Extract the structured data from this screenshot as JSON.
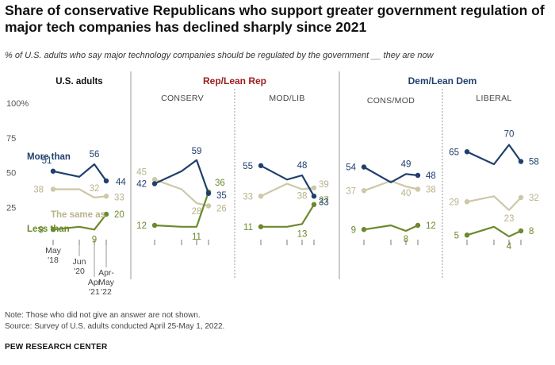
{
  "title": "Share of conservative Republicans who support greater government regulation of major tech companies has declined sharply since 2021",
  "subtitle": "% of U.S. adults who say major technology companies should be regulated by the government __ they are now",
  "notes": [
    "Note: Those who did not give an answer are not shown.",
    "Source: Survey of U.S. adults conducted April 25-May 1, 2022."
  ],
  "source_org": "PEW RESEARCH CENTER",
  "colors": {
    "more": "#1f3f6e",
    "same": "#cdc8a6",
    "less": "#6b8a2c",
    "rep": "#9b1b1b",
    "dem": "#1f3f6e"
  },
  "chart_data": {
    "type": "line",
    "x": [
      "May '18",
      "Jun '20",
      "Apr '21",
      "Apr-May '22"
    ],
    "x_tick_labels": [
      [
        "May",
        "'18"
      ],
      [
        "Jun",
        "'20"
      ],
      [
        "Apr",
        "'21"
      ],
      [
        "Apr-",
        "May",
        "'22"
      ]
    ],
    "y_ticks": [
      "100%",
      "75",
      "50",
      "25"
    ],
    "ylim": [
      0,
      100
    ],
    "series_labels": {
      "more": "More than",
      "same": "The same as",
      "less": "Less than"
    },
    "groups": [
      {
        "label": "Rep/Lean Rep"
      },
      {
        "label": "Dem/Lean Dem"
      }
    ],
    "panels": [
      {
        "label": "U.S. adults",
        "more": [
          51,
          47,
          56,
          44
        ],
        "same": [
          38,
          38,
          32,
          33
        ],
        "less": [
          9,
          11,
          9,
          20
        ]
      },
      {
        "label": "CONSERV",
        "more": [
          42,
          51,
          59,
          35
        ],
        "same": [
          45,
          38,
          28,
          26
        ],
        "less": [
          12,
          11,
          11,
          36
        ]
      },
      {
        "label": "MOD/LIB",
        "more": [
          55,
          45,
          48,
          33
        ],
        "same": [
          33,
          42,
          38,
          39
        ],
        "less": [
          11,
          11,
          13,
          27
        ]
      },
      {
        "label": "CONS/MOD",
        "more": [
          54,
          43,
          49,
          48
        ],
        "same": [
          37,
          44,
          40,
          38
        ],
        "less": [
          9,
          12,
          8,
          12
        ]
      },
      {
        "label": "LIBERAL",
        "more": [
          65,
          56,
          70,
          58
        ],
        "same": [
          29,
          33,
          23,
          32
        ],
        "less": [
          5,
          11,
          4,
          8
        ]
      }
    ]
  }
}
